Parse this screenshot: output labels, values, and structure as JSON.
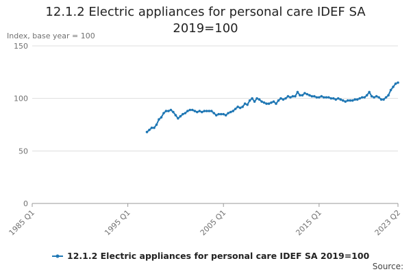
{
  "chart_data": {
    "type": "line",
    "title": "12.1.2 Electric appliances for personal care IDEF SA 2019=100",
    "y_label": "Index, base year = 100",
    "source": "Source:",
    "categories": [
      "1985 Q1",
      null,
      null,
      null,
      null,
      null,
      null,
      null,
      null,
      null,
      null,
      null,
      null,
      null,
      null,
      null,
      null,
      null,
      null,
      null,
      null,
      null,
      null,
      null,
      null,
      null,
      null,
      null,
      null,
      null,
      null,
      null,
      null,
      null,
      null,
      null,
      null,
      null,
      null,
      null,
      "1995 Q1",
      null,
      null,
      null,
      null,
      null,
      null,
      null,
      null,
      null,
      null,
      null,
      null,
      null,
      null,
      null,
      null,
      null,
      null,
      null,
      null,
      null,
      null,
      null,
      null,
      null,
      null,
      null,
      null,
      null,
      null,
      null,
      null,
      null,
      null,
      null,
      null,
      null,
      null,
      null,
      "2005 Q1",
      null,
      null,
      null,
      null,
      null,
      null,
      null,
      null,
      null,
      null,
      null,
      null,
      null,
      null,
      null,
      null,
      null,
      null,
      null,
      null,
      null,
      null,
      null,
      null,
      null,
      null,
      null,
      null,
      null,
      null,
      null,
      null,
      null,
      null,
      null,
      null,
      null,
      null,
      null,
      "2015 Q1",
      null,
      null,
      null,
      null,
      null,
      null,
      null,
      null,
      null,
      null,
      null,
      null,
      null,
      null,
      null,
      null,
      null,
      null,
      null,
      null,
      null,
      null,
      null,
      null,
      null,
      null,
      null,
      null,
      null,
      null,
      null,
      null,
      "2023 Q2"
    ],
    "series": [
      {
        "name": "12.1.2 Electric appliances for personal care IDEF SA 2019=100",
        "color": "#1f77b4",
        "values": [
          null,
          null,
          null,
          null,
          null,
          null,
          null,
          null,
          null,
          null,
          null,
          null,
          null,
          null,
          null,
          null,
          null,
          null,
          null,
          null,
          null,
          null,
          null,
          null,
          null,
          null,
          null,
          null,
          null,
          null,
          null,
          null,
          null,
          null,
          null,
          null,
          null,
          null,
          null,
          null,
          null,
          null,
          null,
          null,
          null,
          null,
          null,
          null,
          68,
          70,
          72,
          72,
          75,
          80,
          82,
          86,
          88,
          88,
          89,
          87,
          84,
          81,
          83,
          85,
          86,
          88,
          89,
          89,
          88,
          87,
          88,
          87,
          88,
          88,
          88,
          88,
          86,
          84,
          85,
          85,
          85,
          84,
          86,
          87,
          88,
          90,
          92,
          91,
          92,
          95,
          94,
          98,
          100,
          97,
          100,
          99,
          97,
          96,
          95,
          95,
          96,
          97,
          95,
          98,
          100,
          99,
          100,
          102,
          101,
          102,
          102,
          106,
          103,
          103,
          105,
          104,
          103,
          102,
          102,
          101,
          101,
          102,
          101,
          101,
          101,
          100,
          100,
          99,
          100,
          99,
          98,
          97,
          98,
          98,
          98,
          99,
          99,
          100,
          101,
          101,
          103,
          106,
          102,
          101,
          102,
          101,
          99,
          99,
          101,
          103,
          108,
          111,
          114,
          115
        ]
      }
    ],
    "ylim": [
      0,
      150
    ],
    "yticks": [
      0,
      50,
      100,
      150
    ],
    "grid": true
  }
}
